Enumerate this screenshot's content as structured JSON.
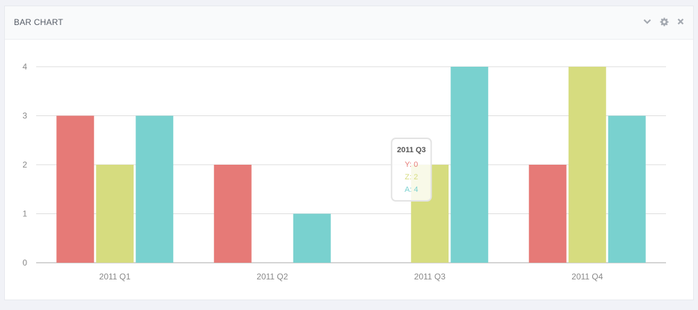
{
  "panel": {
    "title": "BAR CHART",
    "icons": [
      "chevron-down-icon",
      "gear-icon",
      "close-icon"
    ]
  },
  "chart_data": {
    "type": "bar",
    "categories": [
      "2011 Q1",
      "2011 Q2",
      "2011 Q3",
      "2011 Q4"
    ],
    "series": [
      {
        "name": "Y",
        "color": "#e67a77",
        "values": [
          3,
          2,
          0,
          2
        ]
      },
      {
        "name": "Z",
        "color": "#d6dc7f",
        "values": [
          2,
          0,
          2,
          4
        ]
      },
      {
        "name": "A",
        "color": "#79d1cf",
        "values": [
          3,
          1,
          4,
          3
        ]
      }
    ],
    "ylim": [
      0,
      4
    ],
    "yticks": [
      0,
      1,
      2,
      3,
      4
    ],
    "grid": true,
    "hovered_category": "2011 Q3",
    "tooltip": {
      "title": "2011 Q3",
      "rows": [
        {
          "label": "Y: 0",
          "color": "#e67a77"
        },
        {
          "label": "Z: 2",
          "color": "#d6dc7f"
        },
        {
          "label": "A: 4",
          "color": "#79d1cf"
        }
      ]
    }
  }
}
